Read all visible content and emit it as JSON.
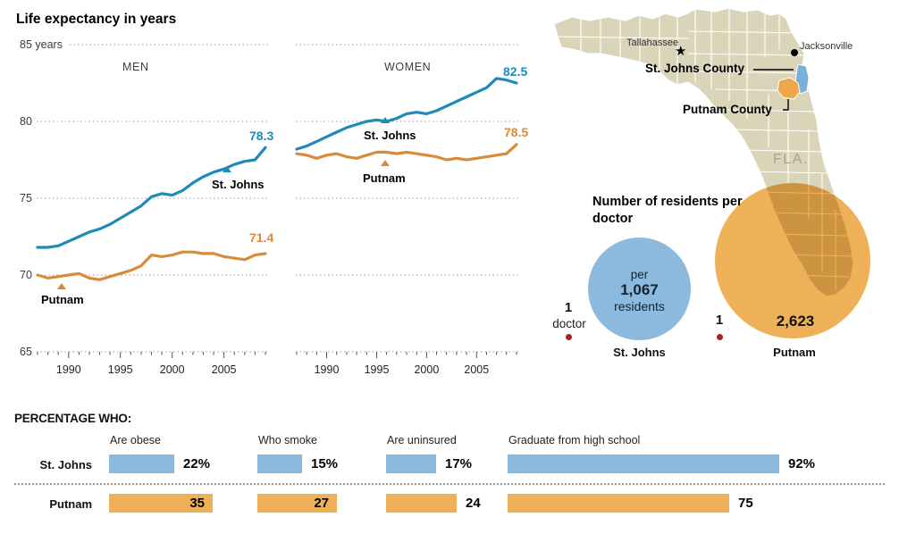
{
  "page": {
    "title": "Life expectancy in years"
  },
  "colors": {
    "line_blue": "#1f8ab8",
    "line_orange": "#d98b38",
    "fill_blue": "#8cbade",
    "fill_orange": "#efb158",
    "map_land": "#dad4b8",
    "county_blue": "#79b0d8",
    "county_orange": "#f0a74b",
    "red_dot": "#a32424"
  },
  "chart_data": [
    {
      "id": "men",
      "type": "line",
      "title": "MEN",
      "x": [
        1987,
        1988,
        1989,
        1990,
        1991,
        1992,
        1993,
        1994,
        1995,
        1996,
        1997,
        1998,
        1999,
        2000,
        2001,
        2002,
        2003,
        2004,
        2005,
        2006,
        2007,
        2008,
        2009
      ],
      "x_tick_labels": [
        1990,
        1995,
        2000,
        2005
      ],
      "ylim": [
        65,
        85
      ],
      "yticks": [
        65,
        70,
        75,
        80,
        85
      ],
      "ytick_labels": [
        "85 years",
        "80",
        "75",
        "70",
        "65"
      ],
      "grid": "dotted",
      "series": [
        {
          "name": "St. Johns",
          "color": "#1f8ab8",
          "end_label": "78.3",
          "values": [
            71.8,
            71.8,
            71.9,
            72.2,
            72.5,
            72.8,
            73.0,
            73.3,
            73.7,
            74.1,
            74.5,
            75.1,
            75.3,
            75.2,
            75.5,
            76.0,
            76.4,
            76.7,
            76.9,
            77.2,
            77.4,
            77.5,
            78.3
          ]
        },
        {
          "name": "Putnam",
          "color": "#d98b38",
          "end_label": "71.4",
          "values": [
            70.0,
            69.8,
            69.9,
            70.0,
            70.1,
            69.8,
            69.7,
            69.9,
            70.1,
            70.3,
            70.6,
            71.3,
            71.2,
            71.3,
            71.5,
            71.5,
            71.4,
            71.4,
            71.2,
            71.1,
            71.0,
            71.3,
            71.4
          ]
        }
      ]
    },
    {
      "id": "women",
      "type": "line",
      "title": "WOMEN",
      "x": [
        1987,
        1988,
        1989,
        1990,
        1991,
        1992,
        1993,
        1994,
        1995,
        1996,
        1997,
        1998,
        1999,
        2000,
        2001,
        2002,
        2003,
        2004,
        2005,
        2006,
        2007,
        2008,
        2009
      ],
      "x_tick_labels": [
        1990,
        1995,
        2000,
        2005
      ],
      "ylim": [
        65,
        85
      ],
      "yticks": [
        65,
        70,
        75,
        80,
        85
      ],
      "grid": "dotted",
      "series": [
        {
          "name": "St. Johns",
          "color": "#1f8ab8",
          "end_label": "82.5",
          "values": [
            78.2,
            78.4,
            78.7,
            79.0,
            79.3,
            79.6,
            79.8,
            80.0,
            80.1,
            80.0,
            80.2,
            80.5,
            80.6,
            80.5,
            80.7,
            81.0,
            81.3,
            81.6,
            81.9,
            82.2,
            82.8,
            82.7,
            82.5
          ]
        },
        {
          "name": "Putnam",
          "color": "#d98b38",
          "end_label": "78.5",
          "values": [
            77.9,
            77.8,
            77.6,
            77.8,
            77.9,
            77.7,
            77.6,
            77.8,
            78.0,
            78.0,
            77.9,
            78.0,
            77.9,
            77.8,
            77.7,
            77.5,
            77.6,
            77.5,
            77.6,
            77.7,
            77.8,
            77.9,
            78.5
          ]
        }
      ]
    },
    {
      "id": "residents_per_doctor",
      "type": "bubble",
      "title": "Number of residents per doctor",
      "items": [
        {
          "name": "St. Johns",
          "value": 1067,
          "color": "#8cbade",
          "circle_text": {
            "line1": "per",
            "line2": "1,067",
            "line3": "residents"
          },
          "side_label": {
            "line1": "1",
            "line2": "doctor"
          }
        },
        {
          "name": "Putnam",
          "value": 2623,
          "color": "#efb158",
          "value_label": "2,623",
          "side_label": {
            "line1": "1"
          }
        }
      ]
    },
    {
      "id": "percentage_who",
      "type": "bar",
      "title": "PERCENTAGE WHO:",
      "categories": [
        "Are obese",
        "Who smoke",
        "Are uninsured",
        "Graduate from high school"
      ],
      "series": [
        {
          "name": "St. Johns",
          "color": "#8cbade",
          "values": [
            22,
            15,
            17,
            92
          ],
          "labels": [
            "22%",
            "15%",
            "17%",
            "92%"
          ],
          "label_inside": [
            false,
            false,
            false,
            false
          ]
        },
        {
          "name": "Putnam",
          "color": "#efb158",
          "values": [
            35,
            27,
            24,
            75
          ],
          "labels": [
            "35",
            "27",
            "24",
            "75"
          ],
          "label_inside": [
            true,
            true,
            false,
            false
          ]
        }
      ]
    }
  ],
  "map": {
    "state_label": "FLA.",
    "cities": [
      {
        "name": "Tallahassee",
        "marker": "star"
      },
      {
        "name": "Jacksonville",
        "marker": "dot"
      }
    ],
    "counties": [
      {
        "name": "St. Johns County",
        "color": "#79b0d8"
      },
      {
        "name": "Putnam County",
        "color": "#f0a74b"
      }
    ]
  }
}
